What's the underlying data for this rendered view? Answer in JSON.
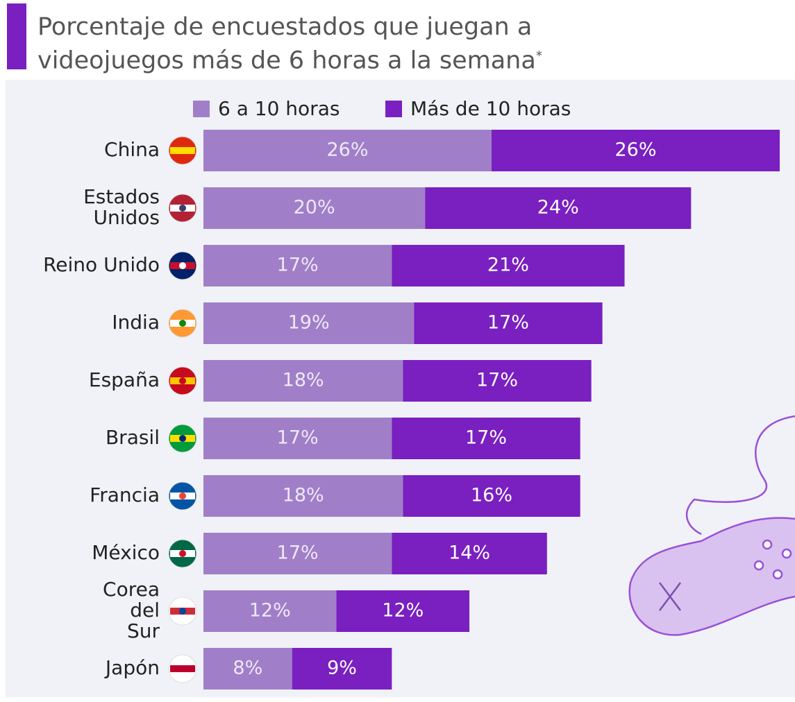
{
  "chart_data": {
    "type": "stacked-bar-horizontal",
    "title": "Porcentaje de encuestados que juegan a videojuegos más de 6 horas a la semana",
    "title_note": "*",
    "categories": [
      "China",
      "Estados Unidos",
      "Reino Unido",
      "India",
      "España",
      "Brasil",
      "Francia",
      "México",
      "Corea del Sur",
      "Japón"
    ],
    "series": [
      {
        "name": "6 a 10 horas",
        "color": "#a07fc8",
        "values": [
          26,
          20,
          17,
          19,
          18,
          17,
          18,
          17,
          12,
          8
        ],
        "value_labels": [
          "26%",
          "20%",
          "17%",
          "19%",
          "18%",
          "17%",
          "18%",
          "17%",
          "12%",
          "8%"
        ]
      },
      {
        "name": "Más de 10 horas",
        "color": "#7a1fc0",
        "values": [
          26,
          24,
          21,
          17,
          17,
          17,
          16,
          14,
          12,
          9
        ],
        "value_labels": [
          "26%",
          "24%",
          "21%",
          "17%",
          "17%",
          "17%",
          "16%",
          "14%",
          "12%",
          "9%"
        ]
      }
    ],
    "legend": "top"
  }
}
